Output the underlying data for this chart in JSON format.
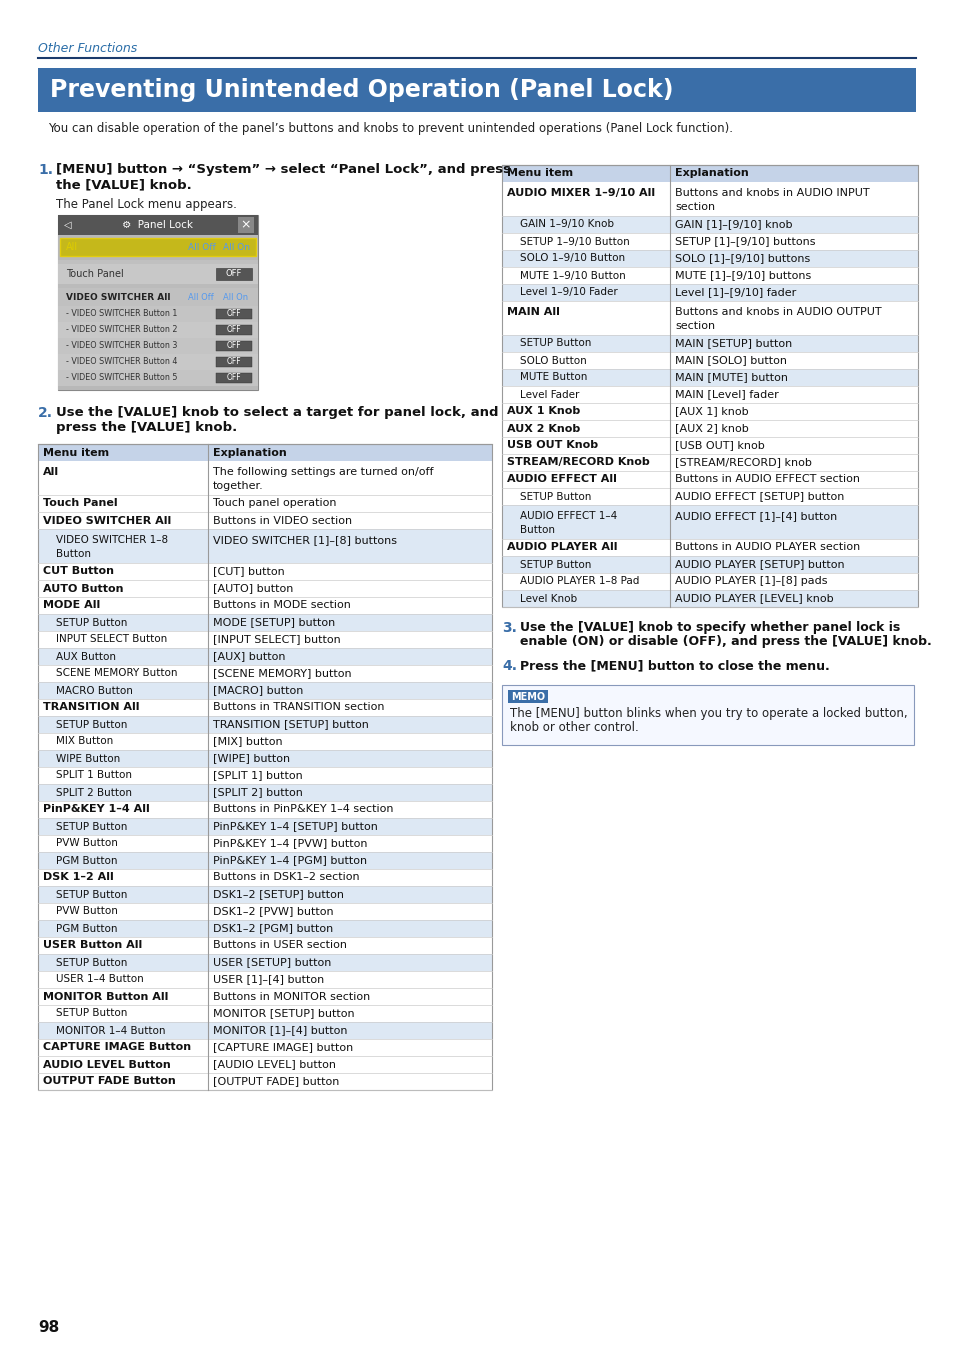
{
  "page_bg": "#ffffff",
  "section_label": "Other Functions",
  "section_label_color": "#2b6ea8",
  "section_line_color": "#1a3a6b",
  "title": "Preventing Unintended Operation (Panel Lock)",
  "title_bg": "#3a6ea8",
  "title_color": "#ffffff",
  "intro_text": "You can disable operation of the panel’s buttons and knobs to prevent unintended operations (Panel Lock function).",
  "step1_num": "1.",
  "step1_text_line1": "[MENU] button → “System” → select “Panel Lock”, and press",
  "step1_text_line2": "the [VALUE] knob.",
  "step1_sub": "The Panel Lock menu appears.",
  "step2_num": "2.",
  "step2_text_line1": "Use the [VALUE] knob to select a target for panel lock, and",
  "step2_text_line2": "press the [VALUE] knob.",
  "step3_num": "3.",
  "step3_text_line1": "Use the [VALUE] knob to specify whether panel lock is",
  "step3_text_line2": "enable (ON) or disable (OFF), and press the [VALUE] knob.",
  "step4_num": "4.",
  "step4_text": "Press the [MENU] button to close the menu.",
  "memo_title": "MEMO",
  "memo_text_line1": "The [MENU] button blinks when you try to operate a locked button,",
  "memo_text_line2": "knob or other control.",
  "table_header_bg": "#c5d3e8",
  "table_header_color": "#1a1a1a",
  "table_row_alt_bg": "#dde8f4",
  "table_row_bg": "#ffffff",
  "left_table_rows": [
    {
      "item": "All",
      "explanation": "The following settings are turned on/off",
      "explanation2": "together.",
      "bold": true,
      "indent": false
    },
    {
      "item": "Touch Panel",
      "explanation": "Touch panel operation",
      "explanation2": "",
      "bold": true,
      "indent": false
    },
    {
      "item": "VIDEO SWITCHER All",
      "explanation": "Buttons in VIDEO section",
      "explanation2": "",
      "bold": true,
      "indent": false
    },
    {
      "item": "VIDEO SWITCHER 1–8",
      "item2": "Button",
      "explanation": "VIDEO SWITCHER [1]–[8] buttons",
      "explanation2": "",
      "bold": false,
      "indent": true
    },
    {
      "item": "CUT Button",
      "item2": "",
      "explanation": "[CUT] button",
      "explanation2": "",
      "bold": true,
      "indent": false
    },
    {
      "item": "AUTO Button",
      "item2": "",
      "explanation": "[AUTO] button",
      "explanation2": "",
      "bold": true,
      "indent": false
    },
    {
      "item": "MODE All",
      "item2": "",
      "explanation": "Buttons in MODE section",
      "explanation2": "",
      "bold": true,
      "indent": false
    },
    {
      "item": "SETUP Button",
      "item2": "",
      "explanation": "MODE [SETUP] button",
      "explanation2": "",
      "bold": false,
      "indent": true
    },
    {
      "item": "INPUT SELECT Button",
      "item2": "",
      "explanation": "[INPUT SELECT] button",
      "explanation2": "",
      "bold": false,
      "indent": true
    },
    {
      "item": "AUX Button",
      "item2": "",
      "explanation": "[AUX] button",
      "explanation2": "",
      "bold": false,
      "indent": true
    },
    {
      "item": "SCENE MEMORY Button",
      "item2": "",
      "explanation": "[SCENE MEMORY] button",
      "explanation2": "",
      "bold": false,
      "indent": true
    },
    {
      "item": "MACRO Button",
      "item2": "",
      "explanation": "[MACRO] button",
      "explanation2": "",
      "bold": false,
      "indent": true
    },
    {
      "item": "TRANSITION All",
      "item2": "",
      "explanation": "Buttons in TRANSITION section",
      "explanation2": "",
      "bold": true,
      "indent": false
    },
    {
      "item": "SETUP Button",
      "item2": "",
      "explanation": "TRANSITION [SETUP] button",
      "explanation2": "",
      "bold": false,
      "indent": true
    },
    {
      "item": "MIX Button",
      "item2": "",
      "explanation": "[MIX] button",
      "explanation2": "",
      "bold": false,
      "indent": true
    },
    {
      "item": "WIPE Button",
      "item2": "",
      "explanation": "[WIPE] button",
      "explanation2": "",
      "bold": false,
      "indent": true
    },
    {
      "item": "SPLIT 1 Button",
      "item2": "",
      "explanation": "[SPLIT 1] button",
      "explanation2": "",
      "bold": false,
      "indent": true
    },
    {
      "item": "SPLIT 2 Button",
      "item2": "",
      "explanation": "[SPLIT 2] button",
      "explanation2": "",
      "bold": false,
      "indent": true
    },
    {
      "item": "PinP&KEY 1–4 All",
      "item2": "",
      "explanation": "Buttons in PinP&KEY 1–4 section",
      "explanation2": "",
      "bold": true,
      "indent": false
    },
    {
      "item": "SETUP Button",
      "item2": "",
      "explanation": "PinP&KEY 1–4 [SETUP] button",
      "explanation2": "",
      "bold": false,
      "indent": true
    },
    {
      "item": "PVW Button",
      "item2": "",
      "explanation": "PinP&KEY 1–4 [PVW] button",
      "explanation2": "",
      "bold": false,
      "indent": true
    },
    {
      "item": "PGM Button",
      "item2": "",
      "explanation": "PinP&KEY 1–4 [PGM] button",
      "explanation2": "",
      "bold": false,
      "indent": true
    },
    {
      "item": "DSK 1–2 All",
      "item2": "",
      "explanation": "Buttons in DSK1–2 section",
      "explanation2": "",
      "bold": true,
      "indent": false
    },
    {
      "item": "SETUP Button",
      "item2": "",
      "explanation": "DSK1–2 [SETUP] button",
      "explanation2": "",
      "bold": false,
      "indent": true
    },
    {
      "item": "PVW Button",
      "item2": "",
      "explanation": "DSK1–2 [PVW] button",
      "explanation2": "",
      "bold": false,
      "indent": true
    },
    {
      "item": "PGM Button",
      "item2": "",
      "explanation": "DSK1–2 [PGM] button",
      "explanation2": "",
      "bold": false,
      "indent": true
    },
    {
      "item": "USER Button All",
      "item2": "",
      "explanation": "Buttons in USER section",
      "explanation2": "",
      "bold": true,
      "indent": false
    },
    {
      "item": "SETUP Button",
      "item2": "",
      "explanation": "USER [SETUP] button",
      "explanation2": "",
      "bold": false,
      "indent": true
    },
    {
      "item": "USER 1–4 Button",
      "item2": "",
      "explanation": "USER [1]–[4] button",
      "explanation2": "",
      "bold": false,
      "indent": true
    },
    {
      "item": "MONITOR Button All",
      "item2": "",
      "explanation": "Buttons in MONITOR section",
      "explanation2": "",
      "bold": true,
      "indent": false
    },
    {
      "item": "SETUP Button",
      "item2": "",
      "explanation": "MONITOR [SETUP] button",
      "explanation2": "",
      "bold": false,
      "indent": true
    },
    {
      "item": "MONITOR 1–4 Button",
      "item2": "",
      "explanation": "MONITOR [1]–[4] button",
      "explanation2": "",
      "bold": false,
      "indent": true
    },
    {
      "item": "CAPTURE IMAGE Button",
      "item2": "",
      "explanation": "[CAPTURE IMAGE] button",
      "explanation2": "",
      "bold": true,
      "indent": false
    },
    {
      "item": "AUDIO LEVEL Button",
      "item2": "",
      "explanation": "[AUDIO LEVEL] button",
      "explanation2": "",
      "bold": true,
      "indent": false
    },
    {
      "item": "OUTPUT FADE Button",
      "item2": "",
      "explanation": "[OUTPUT FADE] button",
      "explanation2": "",
      "bold": true,
      "indent": false
    }
  ],
  "right_table_rows": [
    {
      "item": "AUDIO MIXER 1–9/10 All",
      "item2": "",
      "explanation": "Buttons and knobs in AUDIO INPUT",
      "explanation2": "section",
      "bold": true,
      "indent": false
    },
    {
      "item": "GAIN 1–9/10 Knob",
      "item2": "",
      "explanation": "GAIN [1]–[9/10] knob",
      "explanation2": "",
      "bold": false,
      "indent": true
    },
    {
      "item": "SETUP 1–9/10 Button",
      "item2": "",
      "explanation": "SETUP [1]–[9/10] buttons",
      "explanation2": "",
      "bold": false,
      "indent": true
    },
    {
      "item": "SOLO 1–9/10 Button",
      "item2": "",
      "explanation": "SOLO [1]–[9/10] buttons",
      "explanation2": "",
      "bold": false,
      "indent": true
    },
    {
      "item": "MUTE 1–9/10 Button",
      "item2": "",
      "explanation": "MUTE [1]–[9/10] buttons",
      "explanation2": "",
      "bold": false,
      "indent": true
    },
    {
      "item": "Level 1–9/10 Fader",
      "item2": "",
      "explanation": "Level [1]–[9/10] fader",
      "explanation2": "",
      "bold": false,
      "indent": true
    },
    {
      "item": "MAIN All",
      "item2": "",
      "explanation": "Buttons and knobs in AUDIO OUTPUT",
      "explanation2": "section",
      "bold": true,
      "indent": false
    },
    {
      "item": "SETUP Button",
      "item2": "",
      "explanation": "MAIN [SETUP] button",
      "explanation2": "",
      "bold": false,
      "indent": true
    },
    {
      "item": "SOLO Button",
      "item2": "",
      "explanation": "MAIN [SOLO] button",
      "explanation2": "",
      "bold": false,
      "indent": true
    },
    {
      "item": "MUTE Button",
      "item2": "",
      "explanation": "MAIN [MUTE] button",
      "explanation2": "",
      "bold": false,
      "indent": true
    },
    {
      "item": "Level Fader",
      "item2": "",
      "explanation": "MAIN [Level] fader",
      "explanation2": "",
      "bold": false,
      "indent": true
    },
    {
      "item": "AUX 1 Knob",
      "item2": "",
      "explanation": "[AUX 1] knob",
      "explanation2": "",
      "bold": true,
      "indent": false
    },
    {
      "item": "AUX 2 Knob",
      "item2": "",
      "explanation": "[AUX 2] knob",
      "explanation2": "",
      "bold": true,
      "indent": false
    },
    {
      "item": "USB OUT Knob",
      "item2": "",
      "explanation": "[USB OUT] knob",
      "explanation2": "",
      "bold": true,
      "indent": false
    },
    {
      "item": "STREAM/RECORD Knob",
      "item2": "",
      "explanation": "[STREAM/RECORD] knob",
      "explanation2": "",
      "bold": true,
      "indent": false
    },
    {
      "item": "AUDIO EFFECT All",
      "item2": "",
      "explanation": "Buttons in AUDIO EFFECT section",
      "explanation2": "",
      "bold": true,
      "indent": false
    },
    {
      "item": "SETUP Button",
      "item2": "",
      "explanation": "AUDIO EFFECT [SETUP] button",
      "explanation2": "",
      "bold": false,
      "indent": true
    },
    {
      "item": "AUDIO EFFECT 1–4",
      "item2": "Button",
      "explanation": "AUDIO EFFECT [1]–[4] button",
      "explanation2": "",
      "bold": false,
      "indent": true
    },
    {
      "item": "AUDIO PLAYER All",
      "item2": "",
      "explanation": "Buttons in AUDIO PLAYER section",
      "explanation2": "",
      "bold": true,
      "indent": false
    },
    {
      "item": "SETUP Button",
      "item2": "",
      "explanation": "AUDIO PLAYER [SETUP] button",
      "explanation2": "",
      "bold": false,
      "indent": true
    },
    {
      "item": "AUDIO PLAYER 1–8 Pad",
      "item2": "",
      "explanation": "AUDIO PLAYER [1]–[8] pads",
      "explanation2": "",
      "bold": false,
      "indent": true
    },
    {
      "item": "Level Knob",
      "item2": "",
      "explanation": "AUDIO PLAYER [LEVEL] knob",
      "explanation2": "",
      "bold": false,
      "indent": true
    }
  ],
  "page_number": "98"
}
